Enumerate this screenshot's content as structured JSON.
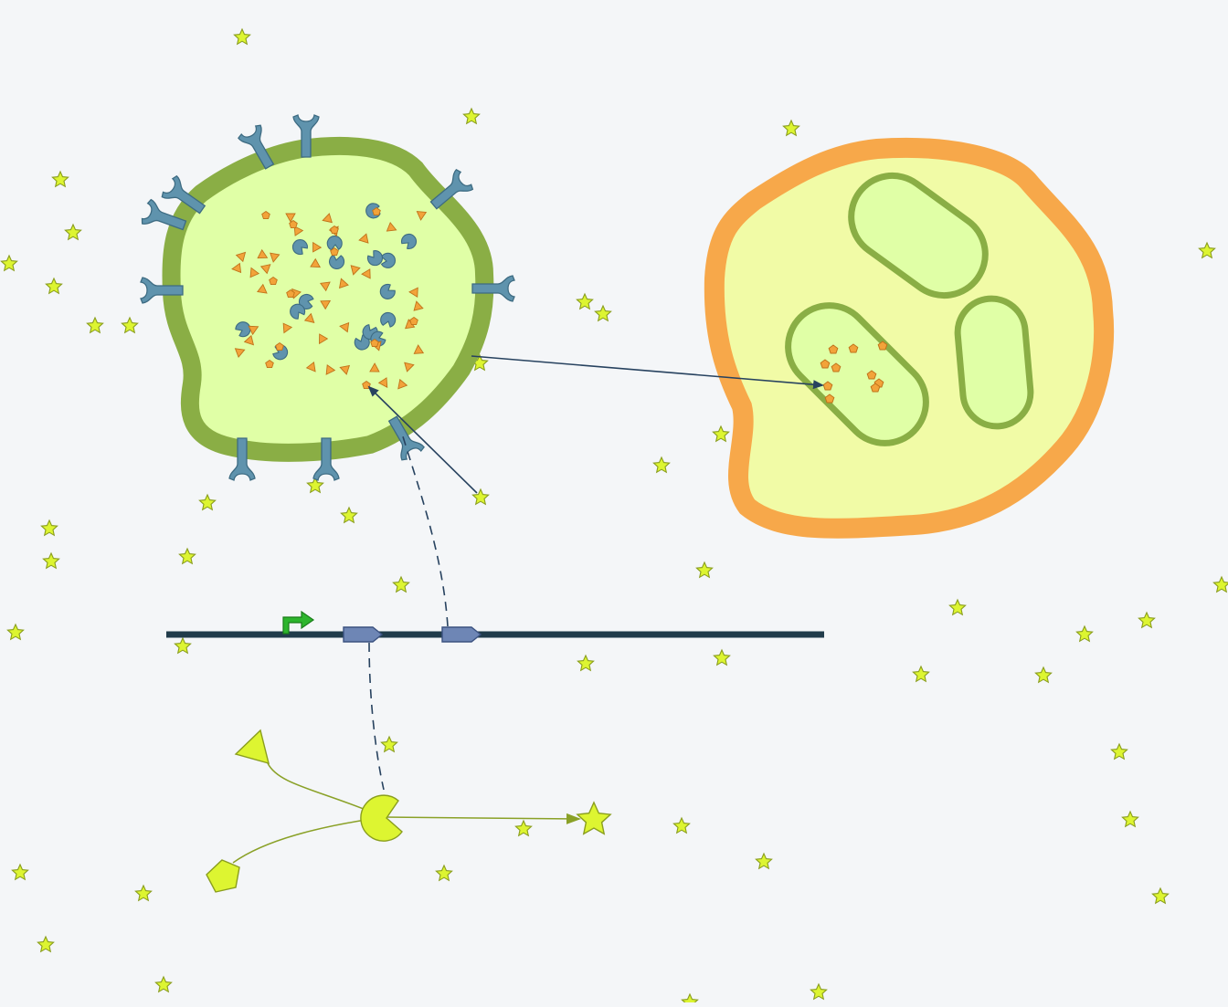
{
  "diagram": {
    "nodes": [
      {
        "id": "producer-cell",
        "kind": "cell",
        "contents": [
          "enzyme",
          "substrate-triangle",
          "product-pentagon"
        ],
        "surface": "receptor"
      },
      {
        "id": "target-cell",
        "kind": "cell",
        "contents": [
          "vesicle",
          "vesicle",
          "vesicle"
        ]
      },
      {
        "id": "dna-strand",
        "kind": "dna",
        "features": [
          "promoter-arrow",
          "gene-1",
          "gene-2"
        ]
      },
      {
        "id": "reaction",
        "kind": "pathway",
        "inputs": [
          "triangle-substrate",
          "pentagon-substrate"
        ],
        "catalyst": "enzyme",
        "output": "star-product"
      },
      {
        "id": "background-molecules",
        "kind": "molecule-field",
        "shape": "star"
      }
    ],
    "edges": [
      {
        "from": "producer-cell",
        "to": "target-cell",
        "style": "solid-arrow"
      },
      {
        "from": "star-molecule",
        "to": "producer-cell",
        "via": "receptor",
        "style": "solid-arrow"
      },
      {
        "from": "gene-1",
        "to": "enzyme",
        "style": "dashed"
      },
      {
        "from": "gene-2",
        "to": "receptor",
        "style": "dashed"
      },
      {
        "from": "enzyme",
        "to": "star-product",
        "style": "solid-arrow"
      }
    ]
  },
  "colors": {
    "background": "#f4f6f8",
    "cell_membrane": "#8aae45",
    "cell_cytoplasm": "#e0ffa6",
    "target_membrane": "#f7a84a",
    "target_cytoplasm": "#f1fba6",
    "receptor": "#5f93ad",
    "receptor_stroke": "#3d6b82",
    "molecule_orange": "#f2a33a",
    "molecule_orange_stroke": "#c0721a",
    "star_fill": "#ddf531",
    "star_stroke": "#8a9e1e",
    "dna": "#213c4b",
    "gene": "#6e86b5",
    "promoter": "#2db52d",
    "arrow": "#27425f",
    "pathway_line": "#8aa127"
  },
  "icons": {
    "receptor": "y-shaped-receptor-icon",
    "enzyme": "pac-man-enzyme-icon",
    "star": "star-molecule-icon",
    "promoter": "bent-arrow-promoter-icon",
    "gene": "pentagon-arrow-gene-icon"
  }
}
